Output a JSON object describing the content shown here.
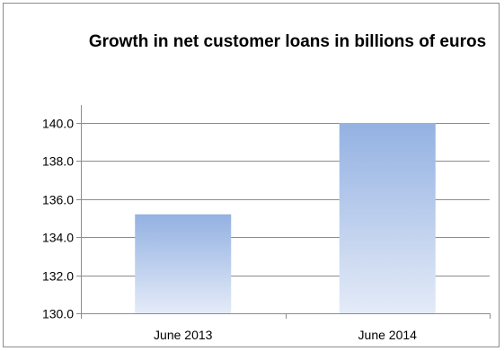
{
  "chart_data": {
    "type": "bar",
    "title": "Growth in net customer loans in billions of euros",
    "categories": [
      "June 2013",
      "June 2014"
    ],
    "values": [
      135.2,
      140.0
    ],
    "ylim": [
      130.0,
      140.0
    ],
    "yticks": [
      "130.0",
      "132.0",
      "134.0",
      "136.0",
      "138.0",
      "140.0"
    ],
    "grid": true,
    "legend": "none",
    "bar_color_top": "#93b1e2",
    "bar_color_bottom": "#e4ebf8",
    "grid_color": "#8c8c8c"
  }
}
